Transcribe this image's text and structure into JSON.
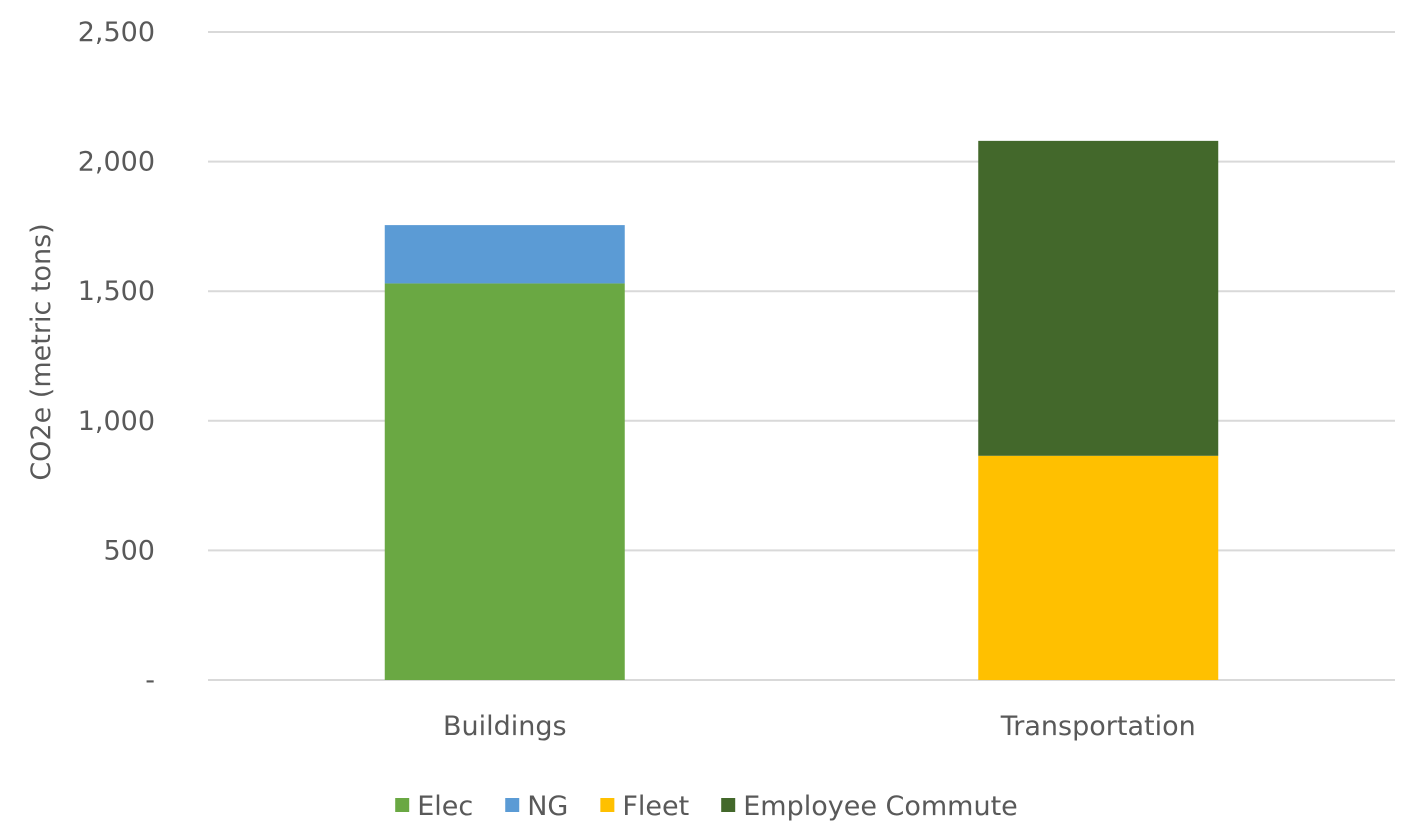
{
  "chart_data": {
    "type": "bar",
    "stacked": true,
    "categories": [
      "Buildings",
      "Transportation"
    ],
    "series": [
      {
        "name": "Elec",
        "color": "#6aa843",
        "values": [
          1530,
          0
        ]
      },
      {
        "name": "NG",
        "color": "#5b9bd5",
        "values": [
          225,
          0
        ]
      },
      {
        "name": "Fleet",
        "color": "#ffc000",
        "values": [
          0,
          865
        ]
      },
      {
        "name": "Employee Commute",
        "color": "#43682b",
        "values": [
          0,
          1215
        ]
      }
    ],
    "ylabel": "CO2e (metric tons)",
    "xlabel": "",
    "ylim": [
      0,
      2500
    ],
    "yticks": [
      0,
      500,
      1000,
      1500,
      2000,
      2500
    ],
    "ytick_labels": [
      "-",
      "500",
      "1,000",
      "1,500",
      "2,000",
      "2,500"
    ],
    "grid": true,
    "legend_position": "bottom"
  }
}
